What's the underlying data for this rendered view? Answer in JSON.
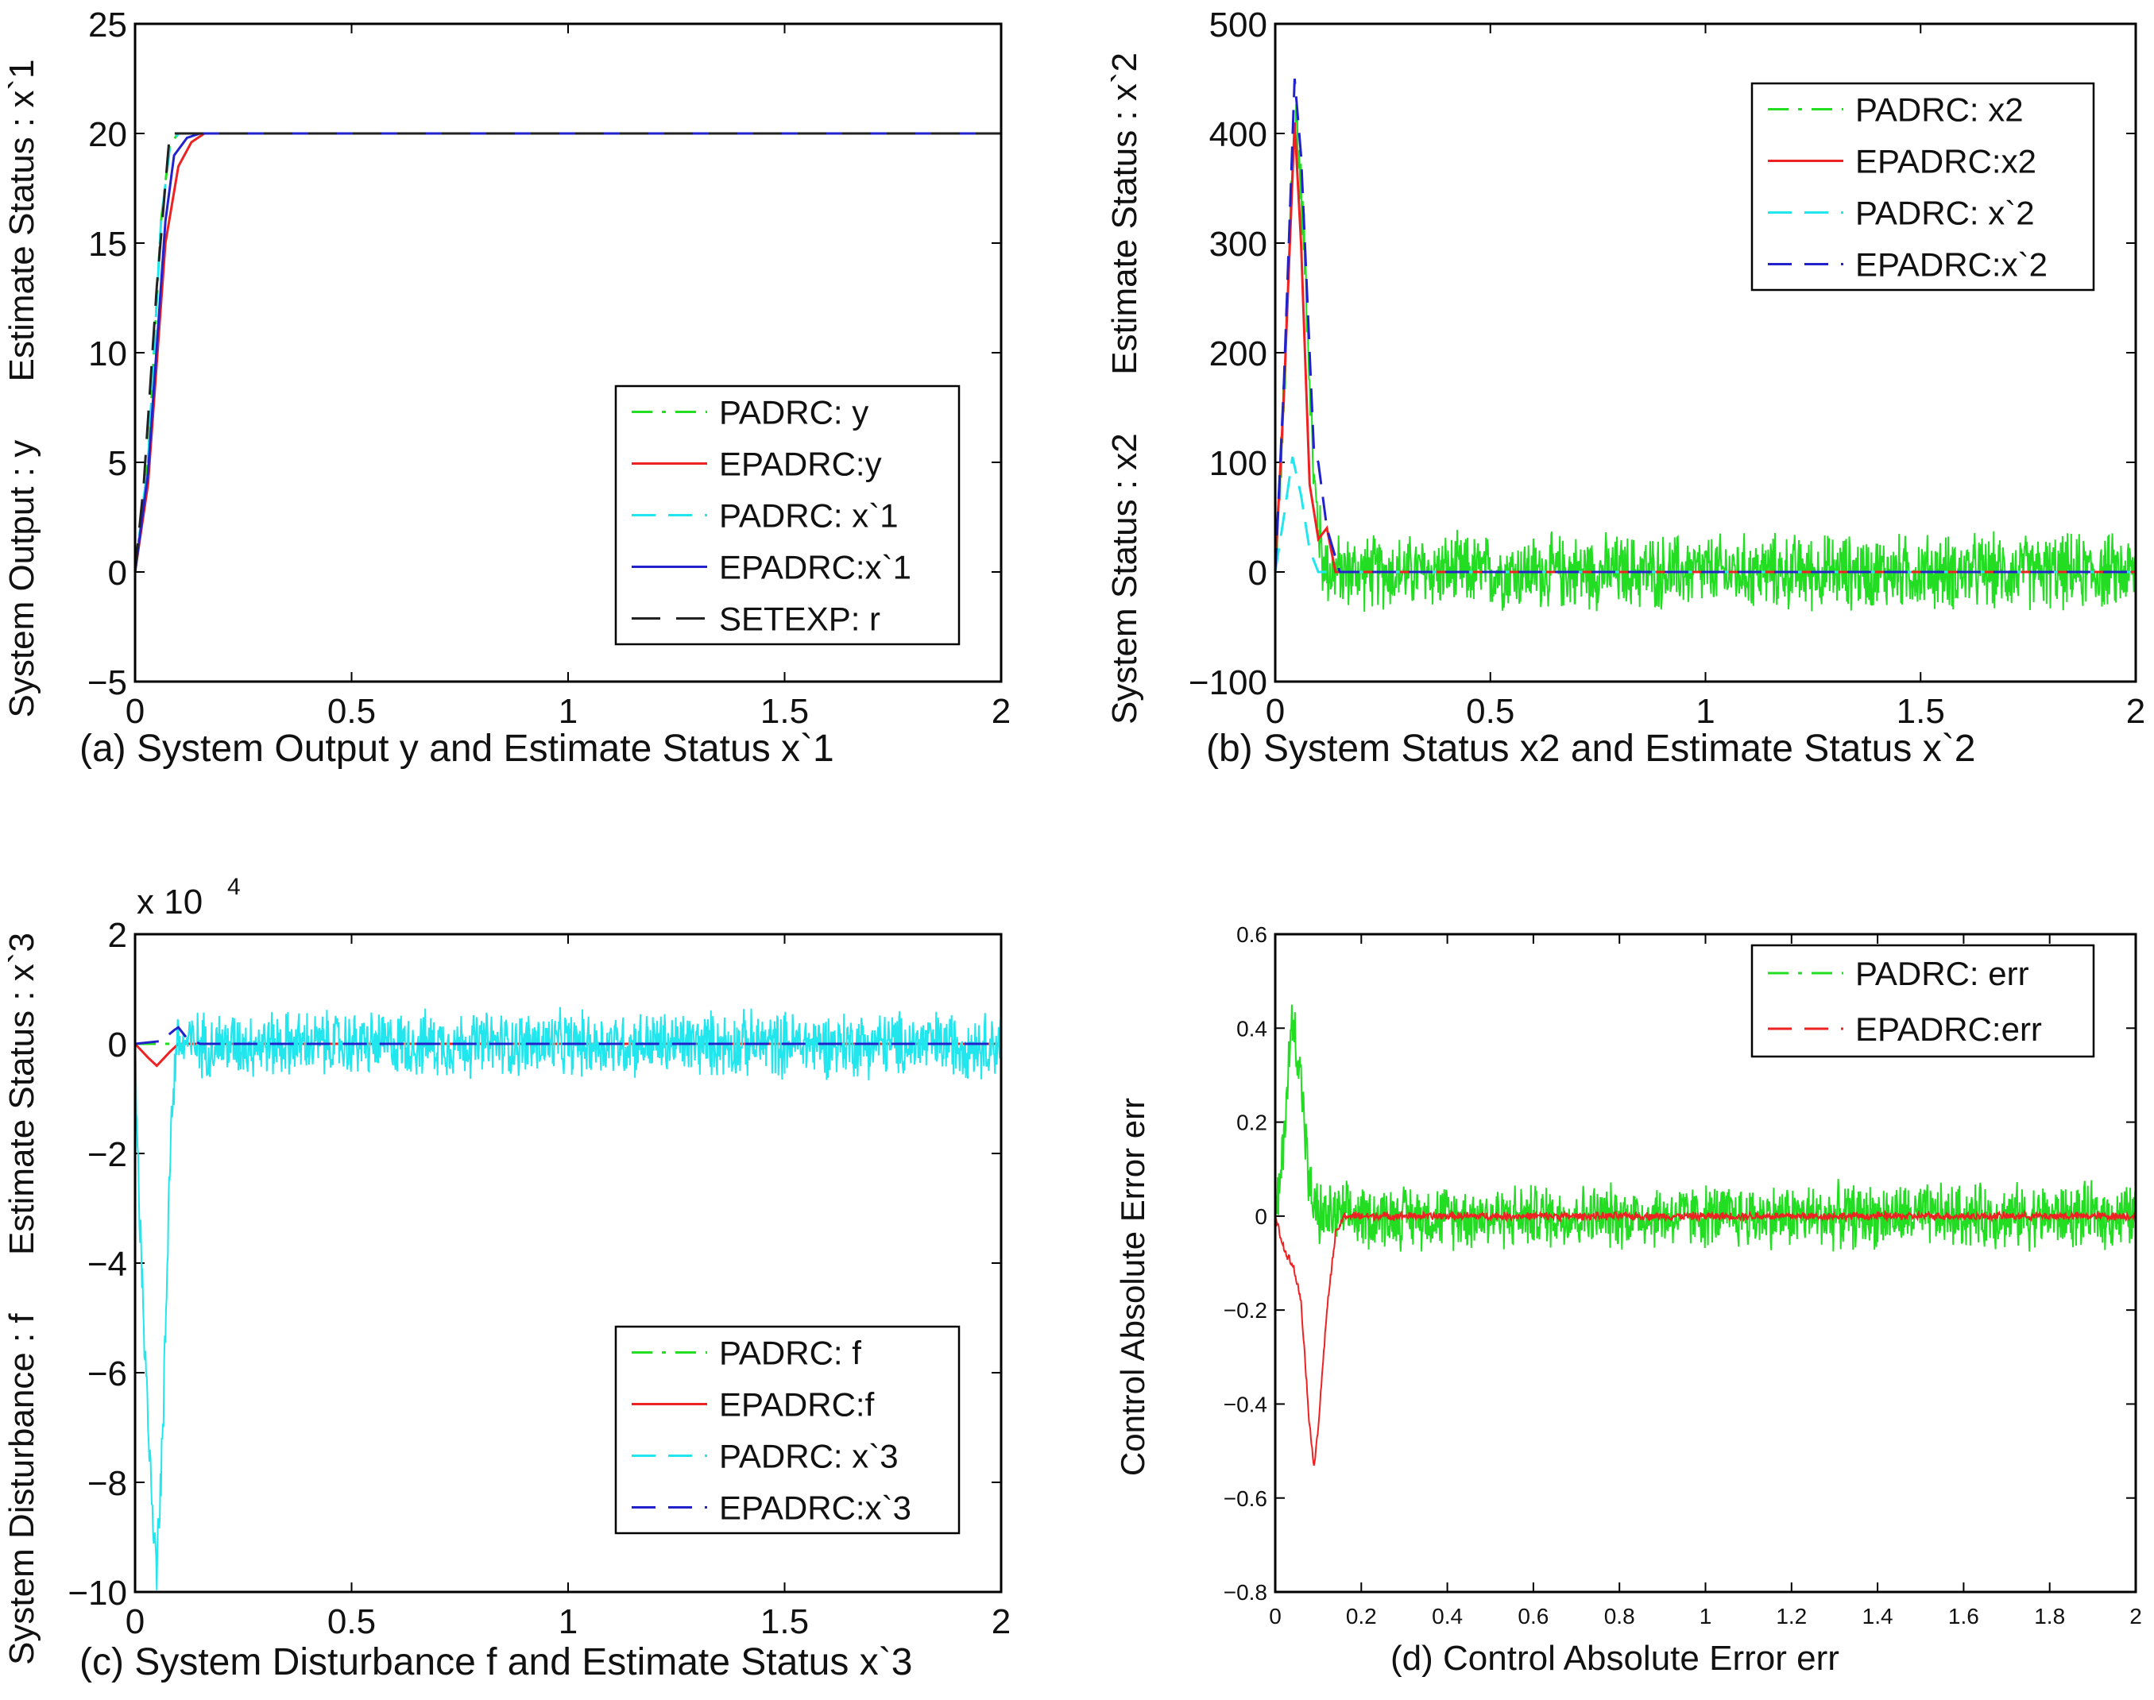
{
  "colors": {
    "green": "#22dd22",
    "red": "#ee2222",
    "cyan": "#22e6ee",
    "blue": "#2222cc",
    "black": "#222222"
  },
  "chart_data": [
    {
      "id": "a",
      "type": "line",
      "caption": "(a)  System Output y and Estimate Status x`1",
      "ylabel": "System Output : y      Estimate Status : x`1",
      "xlim": [
        0,
        2
      ],
      "ylim": [
        -5,
        25
      ],
      "xticks": [
        "0",
        "0.5",
        "1",
        "1.5",
        "2"
      ],
      "yticks": [
        "−5",
        "0",
        "5",
        "10",
        "15",
        "20",
        "25"
      ],
      "legend_position": "bottom-right",
      "series": [
        {
          "name": "PADRC: y",
          "color_key": "green",
          "style": "dashdot",
          "points": [
            [
              0,
              0
            ],
            [
              0.03,
              5
            ],
            [
              0.06,
              16
            ],
            [
              0.08,
              19.5
            ],
            [
              0.1,
              20
            ],
            [
              0.2,
              20
            ],
            [
              2,
              20
            ]
          ]
        },
        {
          "name": "EPADRC:y",
          "color_key": "red",
          "style": "solid",
          "points": [
            [
              0,
              0
            ],
            [
              0.03,
              4
            ],
            [
              0.07,
              15
            ],
            [
              0.1,
              18.5
            ],
            [
              0.13,
              19.6
            ],
            [
              0.16,
              20
            ],
            [
              2,
              20
            ]
          ]
        },
        {
          "name": "PADRC: x`1",
          "color_key": "cyan",
          "style": "dashed",
          "points": [
            [
              0,
              0
            ],
            [
              0.03,
              5
            ],
            [
              0.06,
              16
            ],
            [
              0.08,
              19.3
            ],
            [
              0.1,
              20
            ],
            [
              2,
              20
            ]
          ]
        },
        {
          "name": "EPADRC:x`1",
          "color_key": "blue",
          "style": "solid",
          "points": [
            [
              0,
              0
            ],
            [
              0.03,
              4.5
            ],
            [
              0.07,
              16
            ],
            [
              0.09,
              19
            ],
            [
              0.12,
              19.8
            ],
            [
              0.15,
              20
            ],
            [
              2,
              20
            ]
          ]
        },
        {
          "name": "SETEXP: r",
          "color_key": "black",
          "style": "longdash",
          "points": [
            [
              0,
              0
            ],
            [
              0.02,
              4
            ],
            [
              0.05,
              13
            ],
            [
              0.08,
              20
            ],
            [
              2,
              20
            ]
          ]
        }
      ]
    },
    {
      "id": "b",
      "type": "line",
      "caption": "(b)  System Status x2 and Estimate Status x`2",
      "ylabel": "System Status : x2      Estimate Status : x`2",
      "xlim": [
        0,
        2
      ],
      "ylim": [
        -100,
        500
      ],
      "xticks": [
        "0",
        "0.5",
        "1",
        "1.5",
        "2"
      ],
      "yticks": [
        "−100",
        "0",
        "100",
        "200",
        "300",
        "400",
        "500"
      ],
      "legend_position": "top-right",
      "series": [
        {
          "name": "PADRC: x2",
          "color_key": "green",
          "style": "dashdot",
          "points": [
            [
              0,
              0
            ],
            [
              0.02,
              150
            ],
            [
              0.04,
              380
            ],
            [
              0.05,
              415
            ],
            [
              0.07,
              280
            ],
            [
              0.09,
              80
            ],
            [
              0.11,
              10
            ],
            [
              0.13,
              0
            ],
            [
              2,
              0
            ]
          ],
          "noise_amplitude": 40
        },
        {
          "name": "EPADRC:x2",
          "color_key": "red",
          "style": "solid",
          "points": [
            [
              0,
              0
            ],
            [
              0.02,
              160
            ],
            [
              0.045,
              410
            ],
            [
              0.06,
              300
            ],
            [
              0.08,
              80
            ],
            [
              0.1,
              30
            ],
            [
              0.12,
              40
            ],
            [
              0.14,
              0
            ],
            [
              2,
              0
            ]
          ]
        },
        {
          "name": "PADRC: x`2",
          "color_key": "cyan",
          "style": "dashed",
          "points": [
            [
              0,
              0
            ],
            [
              0.02,
              50
            ],
            [
              0.04,
              105
            ],
            [
              0.06,
              70
            ],
            [
              0.08,
              20
            ],
            [
              0.1,
              0
            ],
            [
              2,
              0
            ]
          ]
        },
        {
          "name": "EPADRC:x`2",
          "color_key": "blue",
          "style": "dashed",
          "points": [
            [
              0,
              0
            ],
            [
              0.02,
              170
            ],
            [
              0.045,
              450
            ],
            [
              0.06,
              380
            ],
            [
              0.08,
              200
            ],
            [
              0.09,
              110
            ],
            [
              0.1,
              100
            ],
            [
              0.12,
              40
            ],
            [
              0.15,
              0
            ],
            [
              2,
              0
            ]
          ]
        }
      ]
    },
    {
      "id": "c",
      "type": "line",
      "caption": "(c) System Disturbance f and Estimate Status x`3",
      "ylabel": "System Disturbance : f      Estimate Status : x`3",
      "xlim": [
        0,
        2
      ],
      "ylim": [
        -10,
        2
      ],
      "exponent_label": "x 10",
      "exponent_power": "4",
      "xticks": [
        "0",
        "0.5",
        "1",
        "1.5",
        "2"
      ],
      "yticks": [
        "−10",
        "−8",
        "−6",
        "−4",
        "−2",
        "0",
        "2"
      ],
      "legend_position": "bottom-right",
      "series": [
        {
          "name": "PADRC: f",
          "color_key": "green",
          "style": "dashdot",
          "points": [
            [
              0,
              0
            ],
            [
              2,
              0
            ]
          ]
        },
        {
          "name": "EPADRC:f",
          "color_key": "red",
          "style": "solid",
          "points": [
            [
              0,
              0
            ],
            [
              0.03,
              -0.25
            ],
            [
              0.05,
              -0.4
            ],
            [
              0.08,
              -0.15
            ],
            [
              0.1,
              0
            ],
            [
              2,
              0
            ]
          ]
        },
        {
          "name": "PADRC: x`3",
          "color_key": "cyan",
          "style": "dashed",
          "points": [
            [
              0,
              0
            ],
            [
              0.01,
              -3
            ],
            [
              0.03,
              -7
            ],
            [
              0.05,
              -9.5
            ],
            [
              0.065,
              -7
            ],
            [
              0.08,
              -2
            ],
            [
              0.095,
              0
            ],
            [
              2,
              0
            ]
          ],
          "noise_amplitude": 0.7
        },
        {
          "name": "EPADRC:x`3",
          "color_key": "blue",
          "style": "dashed",
          "points": [
            [
              0,
              0
            ],
            [
              0.06,
              0.05
            ],
            [
              0.09,
              0.25
            ],
            [
              0.1,
              0.3
            ],
            [
              0.12,
              0.1
            ],
            [
              0.15,
              0
            ],
            [
              2,
              0
            ]
          ]
        }
      ]
    },
    {
      "id": "d",
      "type": "line",
      "caption": "(d)  Control Absolute Error err",
      "ylabel": "Control Absolute Error err",
      "xlim": [
        0,
        2
      ],
      "ylim": [
        -0.8,
        0.6
      ],
      "xticks": [
        "0",
        "0.2",
        "0.4",
        "0.6",
        "0.8",
        "1",
        "1.2",
        "1.4",
        "1.6",
        "1.8",
        "2"
      ],
      "yticks": [
        "−0.8",
        "−0.6",
        "−0.4",
        "−0.2",
        "0",
        "0.2",
        "0.4",
        "0.6"
      ],
      "small_ticks": true,
      "legend_position": "top-right",
      "series": [
        {
          "name": "PADRC: err",
          "color_key": "green",
          "style": "dashdot",
          "points": [
            [
              0,
              0
            ],
            [
              0.01,
              0.05
            ],
            [
              0.03,
              0.3
            ],
            [
              0.04,
              0.42
            ],
            [
              0.06,
              0.3
            ],
            [
              0.08,
              0.05
            ],
            [
              0.1,
              0
            ],
            [
              2,
              0
            ]
          ],
          "noise_amplitude": 0.08
        },
        {
          "name": "EPADRC:err",
          "color_key": "red",
          "style": "dashed",
          "points": [
            [
              0,
              0
            ],
            [
              0.02,
              -0.07
            ],
            [
              0.04,
              -0.1
            ],
            [
              0.06,
              -0.18
            ],
            [
              0.08,
              -0.45
            ],
            [
              0.09,
              -0.53
            ],
            [
              0.1,
              -0.45
            ],
            [
              0.12,
              -0.2
            ],
            [
              0.14,
              -0.04
            ],
            [
              0.16,
              0
            ],
            [
              2,
              0
            ]
          ],
          "noise_amplitude": 0.01
        }
      ]
    }
  ]
}
